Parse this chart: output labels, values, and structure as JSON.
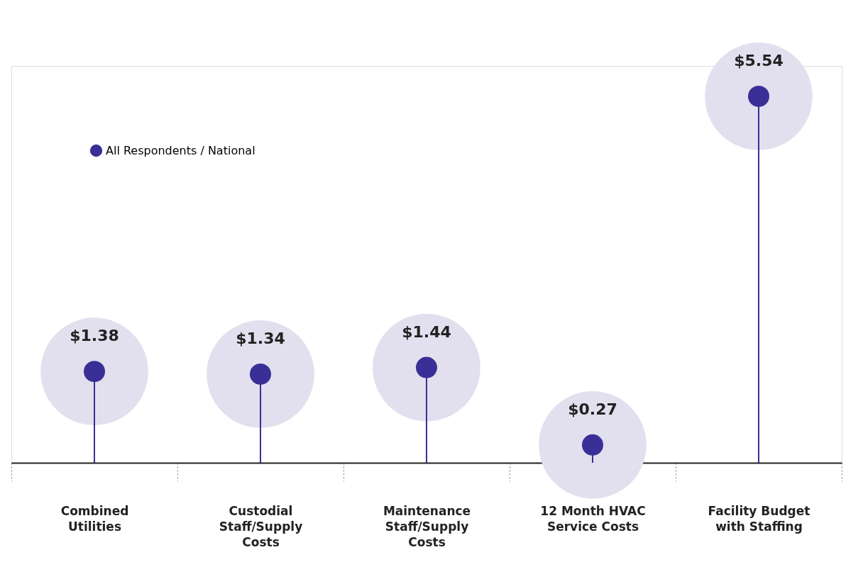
{
  "chart_data": {
    "type": "lollipop",
    "categories": [
      "Combined Utilities",
      "Custodial Staff/Supply Costs",
      "Maintenance Staff/Supply Costs",
      "12 Month HVAC Service Costs",
      "Facility Budget with Staffing"
    ],
    "series": [
      {
        "name": "All Respondents / National",
        "color": "#3a2f96",
        "values": [
          1.38,
          1.34,
          1.44,
          0.27,
          5.54
        ],
        "value_labels": [
          "$1.38",
          "$1.34",
          "$1.44",
          "$0.27",
          "$5.54"
        ]
      }
    ],
    "legend": "top left",
    "grid": false
  }
}
